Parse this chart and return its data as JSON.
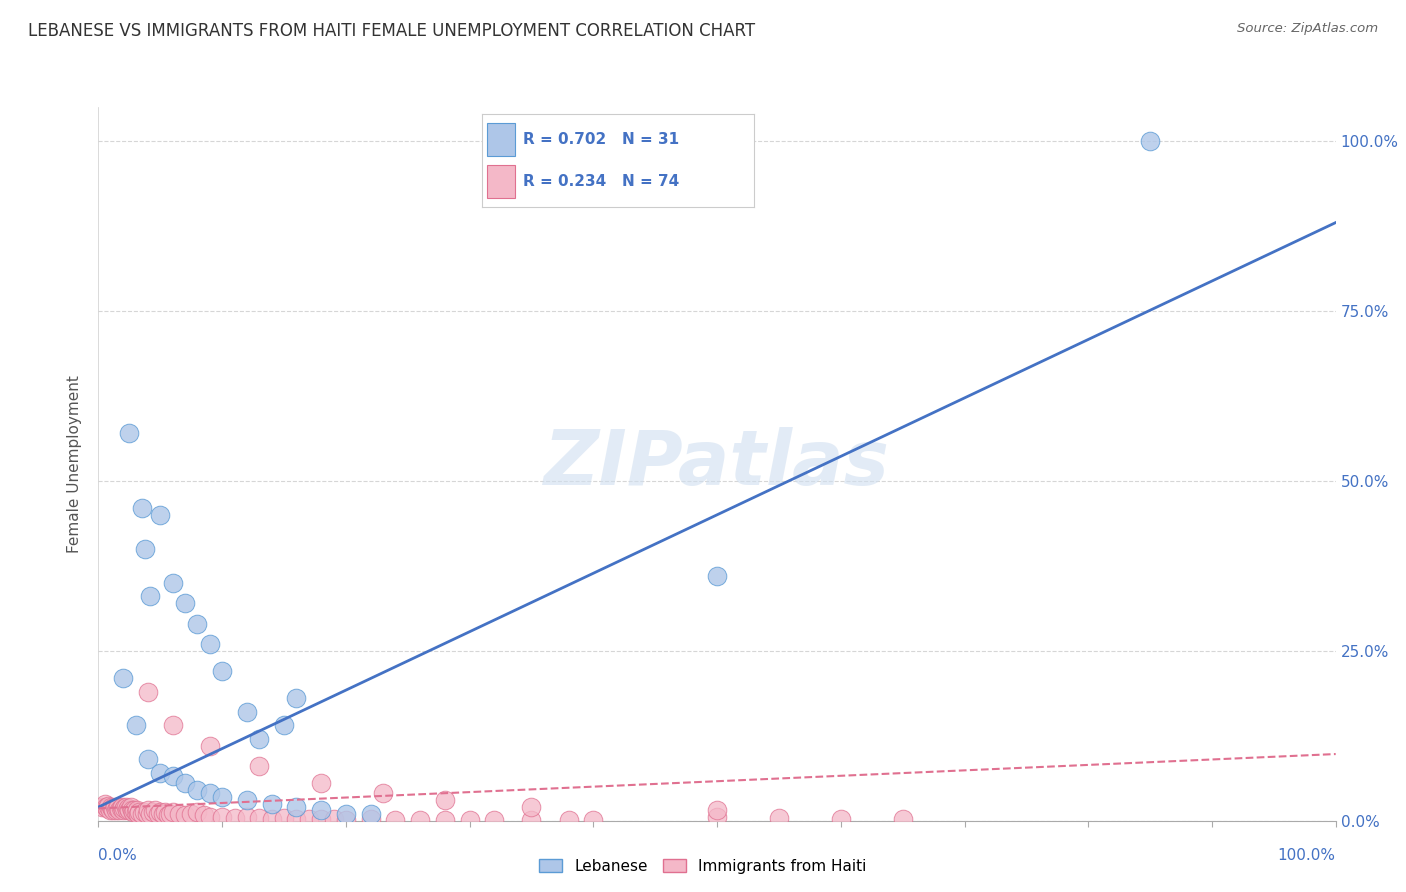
{
  "title": "LEBANESE VS IMMIGRANTS FROM HAITI FEMALE UNEMPLOYMENT CORRELATION CHART",
  "source": "Source: ZipAtlas.com",
  "ylabel": "Female Unemployment",
  "watermark": "ZIPatlas",
  "legend_blue_r": "R = 0.702",
  "legend_blue_n": "N = 31",
  "legend_pink_r": "R = 0.234",
  "legend_pink_n": "N = 74",
  "blue_color": "#aec6e8",
  "blue_edge_color": "#5b9bd5",
  "blue_line_color": "#4472c4",
  "pink_color": "#f4b8c8",
  "pink_edge_color": "#e07090",
  "pink_line_color": "#e07090",
  "text_color": "#4472c4",
  "background": "#ffffff",
  "grid_color": "#cccccc",
  "ytick_labels": [
    "0.0%",
    "25.0%",
    "50.0%",
    "75.0%",
    "100.0%"
  ],
  "ytick_values": [
    0.0,
    0.25,
    0.5,
    0.75,
    1.0
  ],
  "blue_scatter_x": [
    0.025,
    0.035,
    0.038,
    0.042,
    0.05,
    0.06,
    0.07,
    0.08,
    0.09,
    0.1,
    0.12,
    0.15,
    0.13,
    0.16,
    0.02,
    0.03,
    0.04,
    0.05,
    0.06,
    0.07,
    0.08,
    0.09,
    0.1,
    0.12,
    0.14,
    0.16,
    0.18,
    0.2,
    0.22,
    0.85,
    0.5
  ],
  "blue_scatter_y": [
    0.57,
    0.46,
    0.4,
    0.33,
    0.45,
    0.35,
    0.32,
    0.29,
    0.26,
    0.22,
    0.16,
    0.14,
    0.12,
    0.18,
    0.21,
    0.14,
    0.09,
    0.07,
    0.065,
    0.055,
    0.045,
    0.04,
    0.035,
    0.03,
    0.025,
    0.02,
    0.015,
    0.01,
    0.01,
    1.0,
    0.36
  ],
  "pink_scatter_x": [
    0.003,
    0.005,
    0.006,
    0.007,
    0.008,
    0.009,
    0.01,
    0.011,
    0.012,
    0.013,
    0.014,
    0.015,
    0.016,
    0.017,
    0.018,
    0.019,
    0.02,
    0.021,
    0.022,
    0.023,
    0.024,
    0.025,
    0.026,
    0.027,
    0.028,
    0.029,
    0.03,
    0.031,
    0.032,
    0.033,
    0.035,
    0.037,
    0.039,
    0.04,
    0.042,
    0.044,
    0.046,
    0.048,
    0.05,
    0.052,
    0.054,
    0.056,
    0.058,
    0.06,
    0.065,
    0.07,
    0.075,
    0.08,
    0.085,
    0.09,
    0.1,
    0.11,
    0.12,
    0.13,
    0.14,
    0.15,
    0.16,
    0.17,
    0.18,
    0.19,
    0.2,
    0.22,
    0.24,
    0.26,
    0.28,
    0.3,
    0.32,
    0.35,
    0.38,
    0.4,
    0.5,
    0.55,
    0.6,
    0.65
  ],
  "pink_scatter_y": [
    0.02,
    0.025,
    0.02,
    0.018,
    0.022,
    0.015,
    0.02,
    0.018,
    0.016,
    0.02,
    0.015,
    0.018,
    0.02,
    0.015,
    0.018,
    0.02,
    0.015,
    0.018,
    0.02,
    0.015,
    0.018,
    0.015,
    0.02,
    0.015,
    0.012,
    0.015,
    0.012,
    0.015,
    0.01,
    0.012,
    0.01,
    0.012,
    0.01,
    0.015,
    0.01,
    0.012,
    0.015,
    0.01,
    0.012,
    0.01,
    0.012,
    0.008,
    0.01,
    0.012,
    0.01,
    0.008,
    0.01,
    0.012,
    0.008,
    0.006,
    0.005,
    0.004,
    0.005,
    0.004,
    0.003,
    0.004,
    0.003,
    0.002,
    0.002,
    0.002,
    0.001,
    0.002,
    0.001,
    0.001,
    0.001,
    0.001,
    0.001,
    0.001,
    0.001,
    0.001,
    0.005,
    0.004,
    0.003,
    0.002
  ],
  "pink_outlier_x": [
    0.04,
    0.06,
    0.09,
    0.13,
    0.18,
    0.23,
    0.28,
    0.35,
    0.5
  ],
  "pink_outlier_y": [
    0.19,
    0.14,
    0.11,
    0.08,
    0.055,
    0.04,
    0.03,
    0.02,
    0.015
  ]
}
